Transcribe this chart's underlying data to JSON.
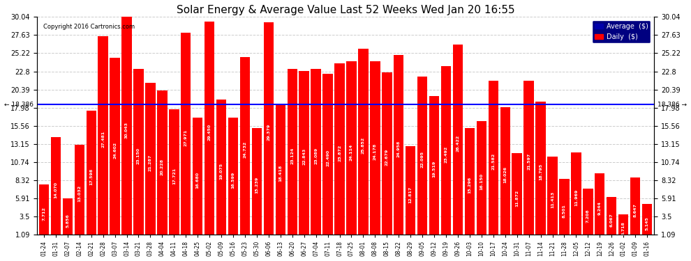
{
  "title": "Solar Energy & Average Value Last 52 Weeks Wed Jan 20 16:55",
  "copyright": "Copyright 2016 Cartronics.com",
  "average_value": 18.386,
  "bar_color": "#ff0000",
  "average_line_color": "#0000ff",
  "background_color": "#ffffff",
  "plot_bg_color": "#ffffff",
  "grid_color": "#cccccc",
  "ylim_min": 1.09,
  "ylim_max": 30.04,
  "yticks_right": [
    1.09,
    3.5,
    5.91,
    8.32,
    10.74,
    13.15,
    15.56,
    17.98,
    20.39,
    22.8,
    25.22,
    27.63,
    30.04
  ],
  "legend_avg_color": "#0000aa",
  "legend_daily_color": "#ff0000",
  "categories": [
    "01-24",
    "01-31",
    "02-07",
    "02-14",
    "02-21",
    "02-28",
    "03-07",
    "03-14",
    "03-21",
    "03-28",
    "04-04",
    "04-11",
    "04-18",
    "04-25",
    "05-02",
    "05-09",
    "05-16",
    "05-23",
    "05-30",
    "06-06",
    "06-13",
    "06-20",
    "06-27",
    "07-04",
    "07-11",
    "07-18",
    "07-25",
    "08-01",
    "08-08",
    "08-15",
    "08-22",
    "08-29",
    "09-05",
    "09-12",
    "09-19",
    "09-26",
    "10-03",
    "10-10",
    "10-17",
    "10-24",
    "10-31",
    "11-07",
    "11-14",
    "11-21",
    "11-28",
    "12-05",
    "12-12",
    "12-19",
    "12-26",
    "01-02",
    "01-09",
    "01-16"
  ],
  "values": [
    7.712,
    14.07,
    5.856,
    13.032,
    17.598,
    27.481,
    24.602,
    30.043,
    23.15,
    21.287,
    20.228,
    17.721,
    27.971,
    16.68,
    29.45,
    19.075,
    16.599,
    24.732,
    15.239,
    29.379,
    18.418,
    23.124,
    22.843,
    23.089,
    22.49,
    23.872,
    24.114,
    25.852,
    24.178,
    22.679,
    24.958,
    12.817,
    22.095,
    19.519,
    23.492,
    26.422,
    15.296,
    16.15,
    21.582,
    18.026,
    11.872,
    21.597,
    18.795,
    11.413,
    8.501,
    11.969,
    7.208,
    9.244,
    6.067,
    3.718,
    8.647,
    5.145
  ]
}
